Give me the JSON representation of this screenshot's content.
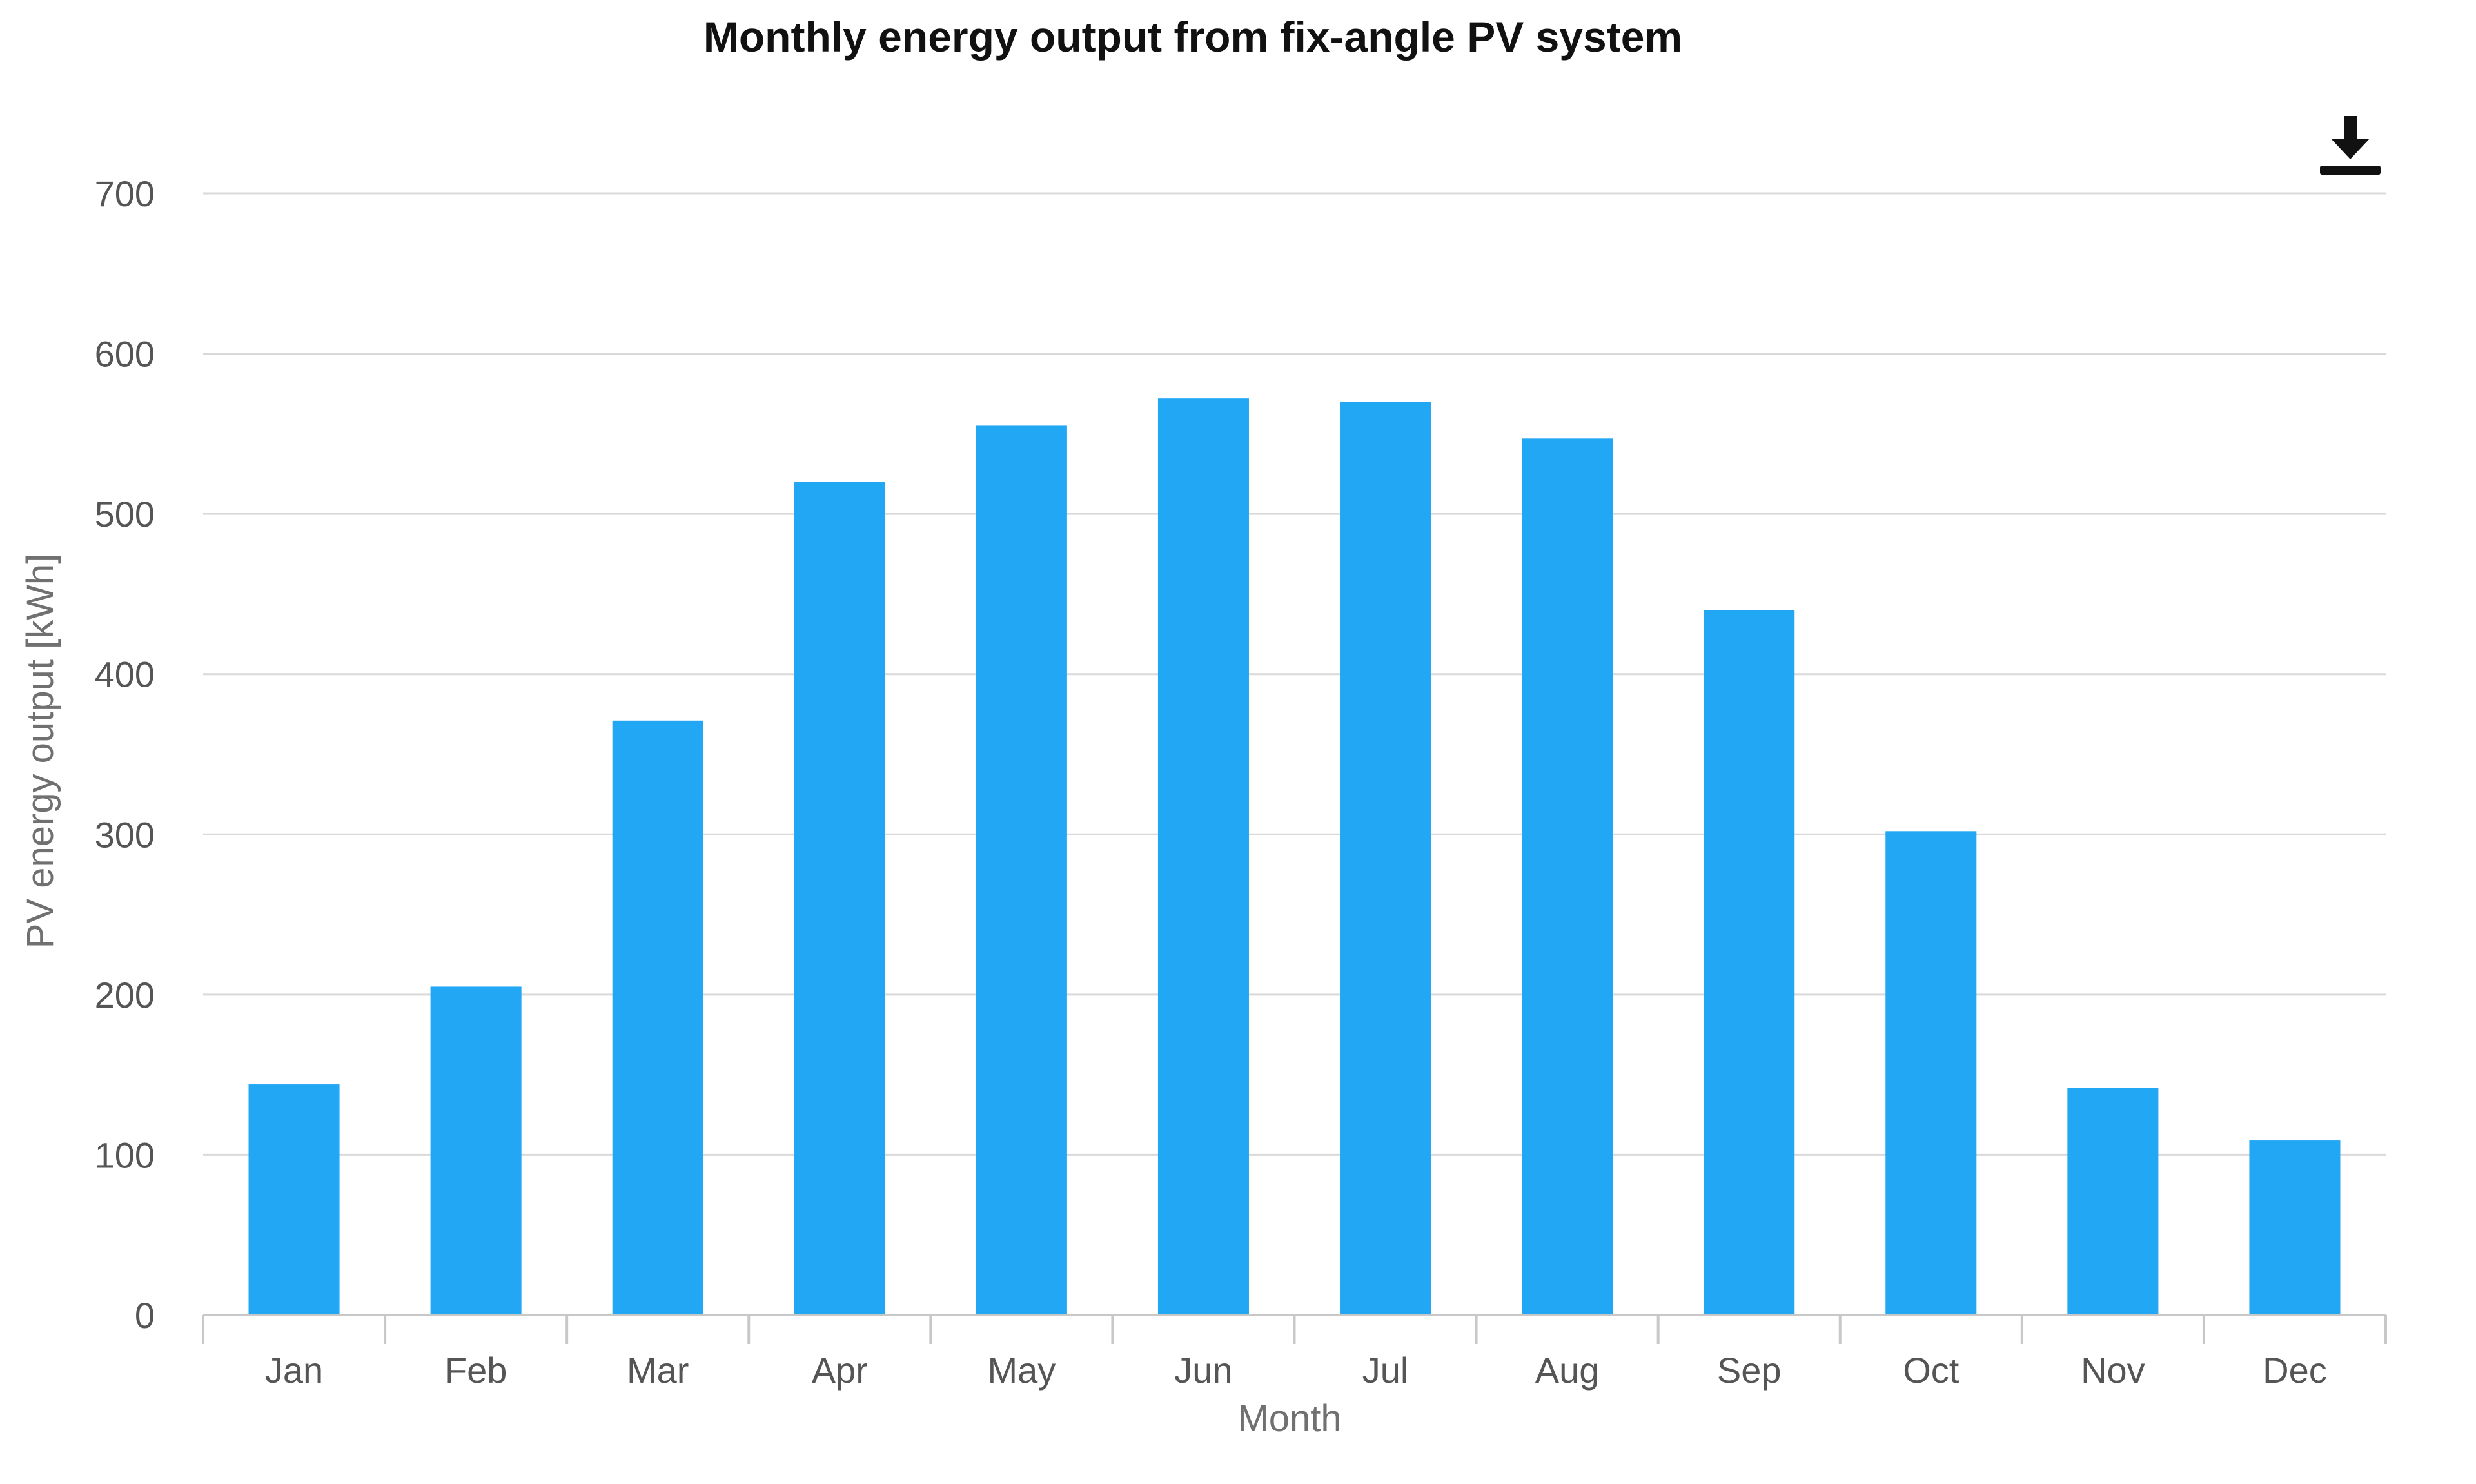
{
  "chart_data": {
    "type": "bar",
    "title": "Monthly energy output from fix-angle PV system",
    "xlabel": "Month",
    "ylabel": "PV energy output [kWh]",
    "categories": [
      "Jan",
      "Feb",
      "Mar",
      "Apr",
      "May",
      "Jun",
      "Jul",
      "Aug",
      "Sep",
      "Oct",
      "Nov",
      "Dec"
    ],
    "series": [
      {
        "values": [
          144,
          205,
          371,
          520,
          555,
          572,
          570,
          547,
          440,
          302,
          142,
          109
        ],
        "color": "#22a7f5"
      }
    ],
    "ylim": [
      0,
      700
    ],
    "yticks": [
      0,
      100,
      200,
      300,
      400,
      500,
      600,
      700
    ],
    "grid": true,
    "legend": "none"
  },
  "toolbar": {
    "download_icon": "download-icon"
  }
}
